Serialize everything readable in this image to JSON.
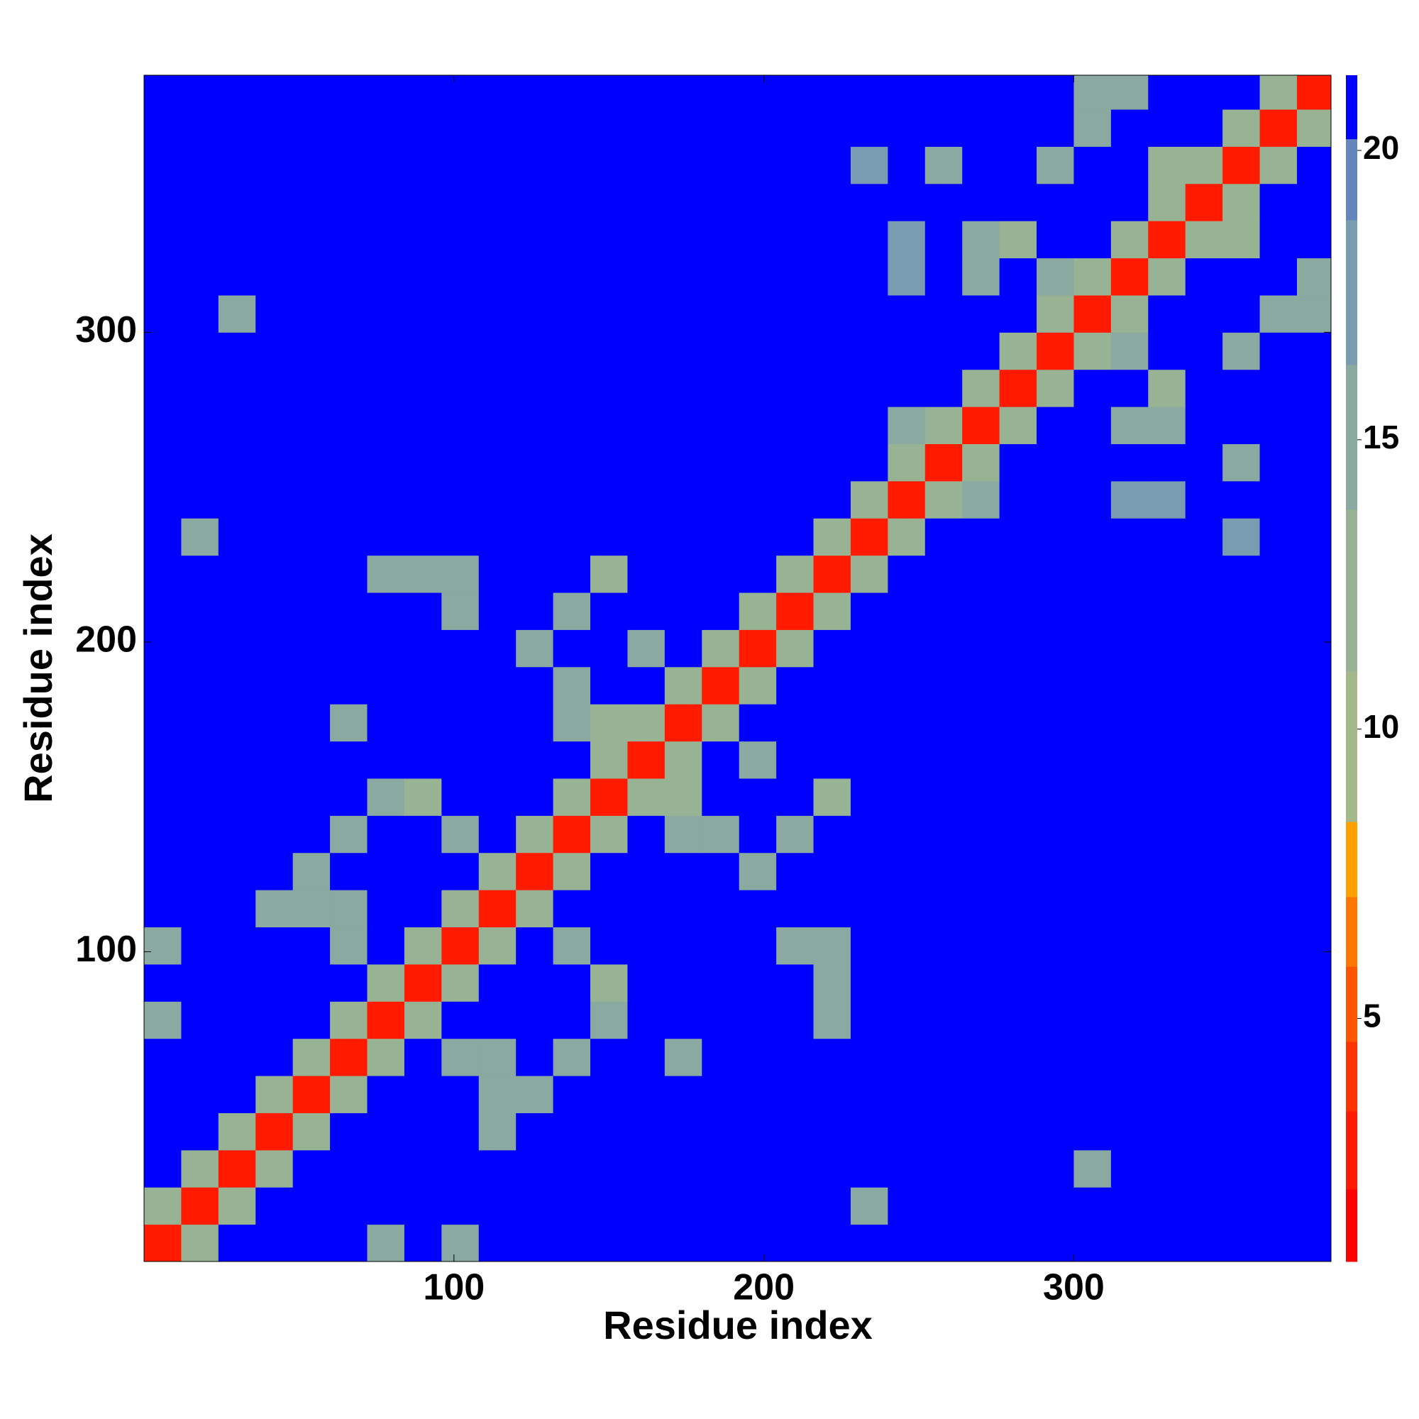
{
  "chart_data": {
    "type": "heatmap",
    "xlabel": "Residue index",
    "ylabel": "Residue index",
    "xlim": [
      0,
      383
    ],
    "ylim": [
      0,
      383
    ],
    "xticks": [
      100,
      200,
      300
    ],
    "yticks": [
      100,
      200,
      300
    ],
    "bin_edges": [
      0,
      12,
      24,
      36,
      48,
      60,
      72,
      84,
      96,
      108,
      120,
      132,
      144,
      156,
      168,
      180,
      192,
      204,
      216,
      228,
      240,
      252,
      264,
      276,
      288,
      300,
      312,
      324,
      336,
      348,
      360,
      372,
      383
    ],
    "z": [
      [
        3,
        12,
        21,
        21,
        21,
        21,
        15,
        21,
        14,
        21,
        21,
        21,
        21,
        21,
        21,
        21,
        21,
        21,
        21,
        21,
        21,
        21,
        21,
        21,
        21,
        21,
        21,
        21,
        21,
        21,
        21,
        21
      ],
      [
        12,
        3,
        12,
        21,
        21,
        21,
        21,
        21,
        21,
        21,
        21,
        21,
        21,
        21,
        21,
        21,
        21,
        21,
        21,
        14,
        21,
        21,
        21,
        21,
        21,
        21,
        21,
        21,
        21,
        21,
        21,
        21
      ],
      [
        21,
        12,
        3,
        12,
        21,
        21,
        21,
        21,
        21,
        21,
        21,
        21,
        21,
        21,
        21,
        21,
        21,
        21,
        21,
        21,
        21,
        21,
        21,
        21,
        21,
        16,
        21,
        21,
        21,
        21,
        21,
        21
      ],
      [
        21,
        21,
        12,
        3,
        12,
        21,
        21,
        21,
        21,
        15,
        21,
        21,
        21,
        21,
        21,
        21,
        21,
        21,
        21,
        21,
        21,
        21,
        21,
        21,
        21,
        21,
        21,
        21,
        21,
        21,
        21,
        21
      ],
      [
        21,
        21,
        21,
        12,
        3,
        12,
        21,
        21,
        21,
        14,
        14,
        21,
        21,
        21,
        21,
        21,
        21,
        21,
        21,
        21,
        21,
        21,
        21,
        21,
        21,
        21,
        21,
        21,
        21,
        21,
        21,
        21
      ],
      [
        21,
        21,
        21,
        21,
        12,
        3,
        12,
        21,
        14,
        15,
        21,
        14,
        21,
        21,
        14,
        21,
        21,
        21,
        21,
        21,
        21,
        21,
        21,
        21,
        21,
        21,
        21,
        21,
        21,
        21,
        21,
        21
      ],
      [
        15,
        21,
        21,
        21,
        21,
        12,
        3,
        12,
        21,
        21,
        21,
        21,
        15,
        21,
        21,
        21,
        21,
        21,
        15,
        21,
        21,
        21,
        21,
        21,
        21,
        21,
        21,
        21,
        21,
        21,
        21,
        21
      ],
      [
        21,
        21,
        21,
        21,
        21,
        21,
        12,
        3,
        12,
        21,
        21,
        21,
        13,
        21,
        21,
        21,
        21,
        21,
        14,
        21,
        21,
        21,
        21,
        21,
        21,
        21,
        21,
        21,
        21,
        21,
        21,
        21
      ],
      [
        14,
        21,
        21,
        21,
        21,
        14,
        21,
        12,
        3,
        12,
        21,
        14,
        21,
        21,
        21,
        21,
        21,
        14,
        15,
        21,
        21,
        21,
        21,
        21,
        21,
        21,
        21,
        21,
        21,
        21,
        21,
        21
      ],
      [
        21,
        21,
        21,
        15,
        14,
        15,
        21,
        21,
        12,
        3,
        12,
        21,
        21,
        21,
        21,
        21,
        21,
        21,
        21,
        21,
        21,
        21,
        21,
        21,
        21,
        21,
        21,
        21,
        21,
        21,
        21,
        21
      ],
      [
        21,
        21,
        21,
        21,
        14,
        21,
        21,
        21,
        21,
        12,
        3,
        12,
        21,
        21,
        21,
        21,
        14,
        21,
        21,
        21,
        21,
        21,
        21,
        21,
        21,
        21,
        21,
        21,
        21,
        21,
        21,
        21
      ],
      [
        21,
        21,
        21,
        21,
        21,
        14,
        21,
        21,
        14,
        21,
        12,
        3,
        12,
        21,
        15,
        14,
        21,
        14,
        21,
        21,
        21,
        21,
        21,
        21,
        21,
        21,
        21,
        21,
        21,
        21,
        21,
        21
      ],
      [
        21,
        21,
        21,
        21,
        21,
        21,
        15,
        13,
        21,
        21,
        21,
        12,
        3,
        12,
        13,
        21,
        21,
        21,
        13,
        21,
        21,
        21,
        21,
        21,
        21,
        21,
        21,
        21,
        21,
        21,
        21,
        21
      ],
      [
        21,
        21,
        21,
        21,
        21,
        21,
        21,
        21,
        21,
        21,
        21,
        21,
        12,
        3,
        12,
        21,
        14,
        21,
        21,
        21,
        21,
        21,
        21,
        21,
        21,
        21,
        21,
        21,
        21,
        21,
        21,
        21
      ],
      [
        21,
        21,
        21,
        21,
        21,
        14,
        21,
        21,
        21,
        21,
        21,
        15,
        13,
        12,
        3,
        12,
        21,
        21,
        21,
        21,
        21,
        21,
        21,
        21,
        21,
        21,
        21,
        21,
        21,
        21,
        21,
        21
      ],
      [
        21,
        21,
        21,
        21,
        21,
        21,
        21,
        21,
        21,
        21,
        21,
        14,
        21,
        21,
        12,
        3,
        12,
        21,
        21,
        21,
        21,
        21,
        21,
        21,
        21,
        21,
        21,
        21,
        21,
        21,
        21,
        21
      ],
      [
        21,
        21,
        21,
        21,
        21,
        21,
        21,
        21,
        21,
        21,
        14,
        21,
        21,
        14,
        21,
        12,
        3,
        12,
        21,
        21,
        21,
        21,
        21,
        21,
        21,
        21,
        21,
        21,
        21,
        21,
        21,
        21
      ],
      [
        21,
        21,
        21,
        21,
        21,
        21,
        21,
        21,
        14,
        21,
        21,
        14,
        21,
        21,
        21,
        21,
        12,
        3,
        12,
        21,
        21,
        21,
        21,
        21,
        21,
        21,
        21,
        21,
        21,
        21,
        21,
        21
      ],
      [
        21,
        21,
        21,
        21,
        21,
        21,
        15,
        14,
        15,
        21,
        21,
        21,
        13,
        21,
        21,
        21,
        21,
        12,
        3,
        12,
        21,
        21,
        21,
        21,
        21,
        21,
        21,
        21,
        21,
        21,
        21,
        21
      ],
      [
        21,
        14,
        21,
        21,
        21,
        21,
        21,
        21,
        21,
        21,
        21,
        21,
        21,
        21,
        21,
        21,
        21,
        21,
        12,
        3,
        12,
        21,
        21,
        21,
        21,
        21,
        21,
        21,
        21,
        18,
        21,
        21
      ],
      [
        21,
        21,
        21,
        21,
        21,
        21,
        21,
        21,
        21,
        21,
        21,
        21,
        21,
        21,
        21,
        21,
        21,
        21,
        21,
        12,
        3,
        12,
        14,
        21,
        21,
        21,
        18,
        18,
        21,
        21,
        21,
        21
      ],
      [
        21,
        21,
        21,
        21,
        21,
        21,
        21,
        21,
        21,
        21,
        21,
        21,
        21,
        21,
        21,
        21,
        21,
        21,
        21,
        21,
        12,
        3,
        12,
        21,
        21,
        21,
        21,
        21,
        21,
        14,
        21,
        21
      ],
      [
        21,
        21,
        21,
        21,
        21,
        21,
        21,
        21,
        21,
        21,
        21,
        21,
        21,
        21,
        21,
        21,
        21,
        21,
        21,
        21,
        14,
        12,
        3,
        12,
        21,
        21,
        14,
        15,
        21,
        21,
        21,
        21
      ],
      [
        21,
        21,
        21,
        21,
        21,
        21,
        21,
        21,
        21,
        21,
        21,
        21,
        21,
        21,
        21,
        21,
        21,
        21,
        21,
        21,
        21,
        21,
        12,
        3,
        12,
        21,
        21,
        13,
        21,
        21,
        21,
        21
      ],
      [
        21,
        21,
        21,
        21,
        21,
        21,
        21,
        21,
        21,
        21,
        21,
        21,
        21,
        21,
        21,
        21,
        21,
        21,
        21,
        21,
        21,
        21,
        21,
        12,
        3,
        12,
        14,
        21,
        21,
        14,
        21,
        21
      ],
      [
        21,
        21,
        16,
        21,
        21,
        21,
        21,
        21,
        21,
        21,
        21,
        21,
        21,
        21,
        21,
        21,
        21,
        21,
        21,
        21,
        21,
        21,
        21,
        21,
        12,
        3,
        12,
        21,
        21,
        21,
        14,
        14
      ],
      [
        21,
        21,
        21,
        21,
        21,
        21,
        21,
        21,
        21,
        21,
        21,
        21,
        21,
        21,
        21,
        21,
        21,
        21,
        21,
        21,
        18,
        21,
        14,
        21,
        14,
        12,
        3,
        12,
        21,
        21,
        21,
        15
      ],
      [
        21,
        21,
        21,
        21,
        21,
        21,
        21,
        21,
        21,
        21,
        21,
        21,
        21,
        21,
        21,
        21,
        21,
        21,
        21,
        21,
        18,
        21,
        15,
        13,
        21,
        21,
        12,
        3,
        12,
        13,
        21,
        21
      ],
      [
        21,
        21,
        21,
        21,
        21,
        21,
        21,
        21,
        21,
        21,
        21,
        21,
        21,
        21,
        21,
        21,
        21,
        21,
        21,
        21,
        21,
        21,
        21,
        21,
        21,
        21,
        21,
        12,
        3,
        12,
        21,
        21
      ],
      [
        21,
        21,
        21,
        21,
        21,
        21,
        21,
        21,
        21,
        21,
        21,
        21,
        21,
        21,
        21,
        21,
        21,
        21,
        21,
        18,
        21,
        14,
        21,
        21,
        14,
        21,
        21,
        13,
        12,
        3,
        12,
        21
      ],
      [
        21,
        21,
        21,
        21,
        21,
        21,
        21,
        21,
        21,
        21,
        21,
        21,
        21,
        21,
        21,
        21,
        21,
        21,
        21,
        21,
        21,
        21,
        21,
        21,
        21,
        14,
        21,
        21,
        21,
        12,
        3,
        12
      ],
      [
        21,
        21,
        21,
        21,
        21,
        21,
        21,
        21,
        21,
        21,
        21,
        21,
        21,
        21,
        21,
        21,
        21,
        21,
        21,
        21,
        21,
        21,
        21,
        21,
        21,
        14,
        15,
        21,
        21,
        21,
        12,
        3
      ]
    ],
    "colorbar": {
      "range": [
        0.8,
        21.3
      ],
      "ticks": [
        5,
        10,
        15,
        20
      ],
      "bands": [
        {
          "min": 0.8,
          "max": 2.05,
          "color": "#ff0000"
        },
        {
          "min": 2.05,
          "max": 3.4,
          "color": "#ff1a00"
        },
        {
          "min": 3.4,
          "max": 4.6,
          "color": "#ff3300"
        },
        {
          "min": 4.6,
          "max": 5.9,
          "color": "#ff5500"
        },
        {
          "min": 5.9,
          "max": 7.1,
          "color": "#ff7700"
        },
        {
          "min": 7.1,
          "max": 8.4,
          "color": "#ff9f00"
        },
        {
          "min": 8.4,
          "max": 11,
          "color": "#a4b88c"
        },
        {
          "min": 11,
          "max": 13.8,
          "color": "#98b294"
        },
        {
          "min": 13.8,
          "max": 16.3,
          "color": "#8aa9a0"
        },
        {
          "min": 16.3,
          "max": 18.8,
          "color": "#7a9cb0"
        },
        {
          "min": 18.8,
          "max": 20.2,
          "color": "#6486bc"
        },
        {
          "min": 20.2,
          "max": 21.3,
          "color": "#0000ff"
        }
      ]
    }
  }
}
